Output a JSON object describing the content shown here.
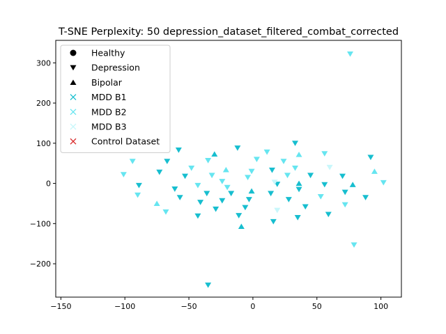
{
  "chart_data": {
    "type": "scatter",
    "title": "T-SNE Perplexity: 50 depression_dataset_filtered_combat_corrected",
    "xlabel": "",
    "ylabel": "",
    "xlim": [
      -154,
      116
    ],
    "ylim": [
      -283,
      356
    ],
    "xticks": [
      -150,
      -100,
      -50,
      0,
      50,
      100
    ],
    "yticks": [
      -200,
      -100,
      0,
      100,
      200,
      300
    ],
    "xtick_labels": [
      "−150",
      "−100",
      "−50",
      "0",
      "50",
      "100"
    ],
    "ytick_labels": [
      "−200",
      "−100",
      "0",
      "100",
      "200",
      "300"
    ],
    "grid": false,
    "legend_position": "upper-left",
    "colors": {
      "b1": "#17becf",
      "b2": "#66e5f0",
      "b3": "#c8f7fb",
      "control": "#d62728",
      "marker_legend": "#000000"
    },
    "legend": [
      {
        "label": "Healthy",
        "marker": "circle",
        "color": "#000000"
      },
      {
        "label": "Depression",
        "marker": "triangle-down",
        "color": "#000000"
      },
      {
        "label": "Bipolar",
        "marker": "triangle-up",
        "color": "#000000"
      },
      {
        "label": "MDD B1",
        "marker": "x",
        "color": "#17becf"
      },
      {
        "label": "MDD B2",
        "marker": "x",
        "color": "#66e5f0"
      },
      {
        "label": "MDD B3",
        "marker": "x",
        "color": "#c8f7fb"
      },
      {
        "label": "Control Dataset",
        "marker": "x",
        "color": "#d62728"
      }
    ],
    "series": [
      {
        "marker": "triangle-down",
        "batch": "b1",
        "points": [
          [
            -89,
            -5
          ],
          [
            -73,
            28
          ],
          [
            -67,
            55
          ],
          [
            -61,
            -14
          ],
          [
            -58,
            83
          ],
          [
            -57,
            -35
          ],
          [
            -53,
            18
          ],
          [
            -43,
            -81
          ],
          [
            -41,
            -47
          ],
          [
            -36,
            -25
          ],
          [
            -35,
            -253
          ],
          [
            -29,
            -64
          ],
          [
            -24,
            -43
          ],
          [
            -17,
            -25
          ],
          [
            -12,
            88
          ],
          [
            -11,
            -80
          ],
          [
            -6,
            -60
          ],
          [
            -3,
            -40
          ],
          [
            14,
            -25
          ],
          [
            15,
            33
          ],
          [
            16,
            -95
          ],
          [
            19,
            -2
          ],
          [
            28,
            -40
          ],
          [
            33,
            100
          ],
          [
            35,
            -85
          ],
          [
            36,
            -15
          ],
          [
            41,
            -58
          ],
          [
            45,
            20
          ],
          [
            56,
            -3
          ],
          [
            59,
            -77
          ],
          [
            70,
            18
          ],
          [
            72,
            -22
          ],
          [
            88,
            -35
          ],
          [
            92,
            65
          ]
        ]
      },
      {
        "marker": "triangle-up",
        "batch": "b1",
        "points": [
          [
            -30,
            73
          ],
          [
            -9,
            -107
          ],
          [
            -1,
            -19
          ],
          [
            36,
            0
          ],
          [
            78,
            -3
          ]
        ]
      },
      {
        "marker": "triangle-down",
        "batch": "b2",
        "points": [
          [
            -94,
            55
          ],
          [
            -101,
            22
          ],
          [
            -90,
            -29
          ],
          [
            -68,
            -71
          ],
          [
            -48,
            38
          ],
          [
            -43,
            -5
          ],
          [
            -35,
            57
          ],
          [
            -32,
            20
          ],
          [
            -24,
            5
          ],
          [
            -20,
            -10
          ],
          [
            -4,
            15
          ],
          [
            -1,
            30
          ],
          [
            3,
            60
          ],
          [
            11,
            78
          ],
          [
            24,
            55
          ],
          [
            27,
            20
          ],
          [
            33,
            38
          ],
          [
            53,
            -33
          ],
          [
            56,
            74
          ],
          [
            72,
            -53
          ],
          [
            76,
            322
          ],
          [
            79,
            -153
          ],
          [
            102,
            2
          ]
        ]
      },
      {
        "marker": "triangle-up",
        "batch": "b2",
        "points": [
          [
            -75,
            -50
          ],
          [
            -21,
            34
          ],
          [
            36,
            72
          ],
          [
            95,
            30
          ]
        ]
      },
      {
        "marker": "triangle-down",
        "batch": "b3",
        "points": [
          [
            -139,
            89
          ],
          [
            17,
            3
          ],
          [
            19,
            -67
          ],
          [
            60,
            40
          ]
        ]
      }
    ]
  }
}
